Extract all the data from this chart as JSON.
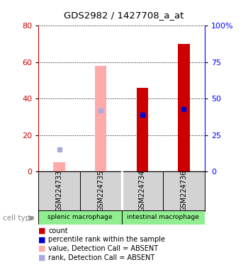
{
  "title": "GDS2982 / 1427708_a_at",
  "samples": [
    "GSM224733",
    "GSM224735",
    "GSM224734",
    "GSM224736"
  ],
  "group1_name": "splenic macrophage",
  "group2_name": "intestinal macrophage",
  "group_color": "#90EE90",
  "count_values": [
    null,
    null,
    46,
    70
  ],
  "absent_value": [
    5,
    58,
    null,
    null
  ],
  "absent_rank": [
    15,
    42,
    null,
    null
  ],
  "percentile_rank": [
    null,
    null,
    39,
    43
  ],
  "ylim_left": [
    0,
    80
  ],
  "ylim_right": [
    0,
    100
  ],
  "yticks_left": [
    0,
    20,
    40,
    60,
    80
  ],
  "yticks_right": [
    0,
    25,
    50,
    75,
    100
  ],
  "yticklabels_right": [
    "0",
    "25",
    "50",
    "75",
    "100%"
  ],
  "bar_width": 0.28,
  "absent_bar_color": "#ffaaaa",
  "absent_rank_color": "#aaaadd",
  "present_bar_color": "#cc0000",
  "present_rank_color": "#0000cc",
  "sample_box_color": "#d3d3d3",
  "cell_type_label": "cell type",
  "legend_items": [
    {
      "label": "count",
      "color": "#cc0000"
    },
    {
      "label": "percentile rank within the sample",
      "color": "#0000cc"
    },
    {
      "label": "value, Detection Call = ABSENT",
      "color": "#ffaaaa"
    },
    {
      "label": "rank, Detection Call = ABSENT",
      "color": "#aaaadd"
    }
  ]
}
